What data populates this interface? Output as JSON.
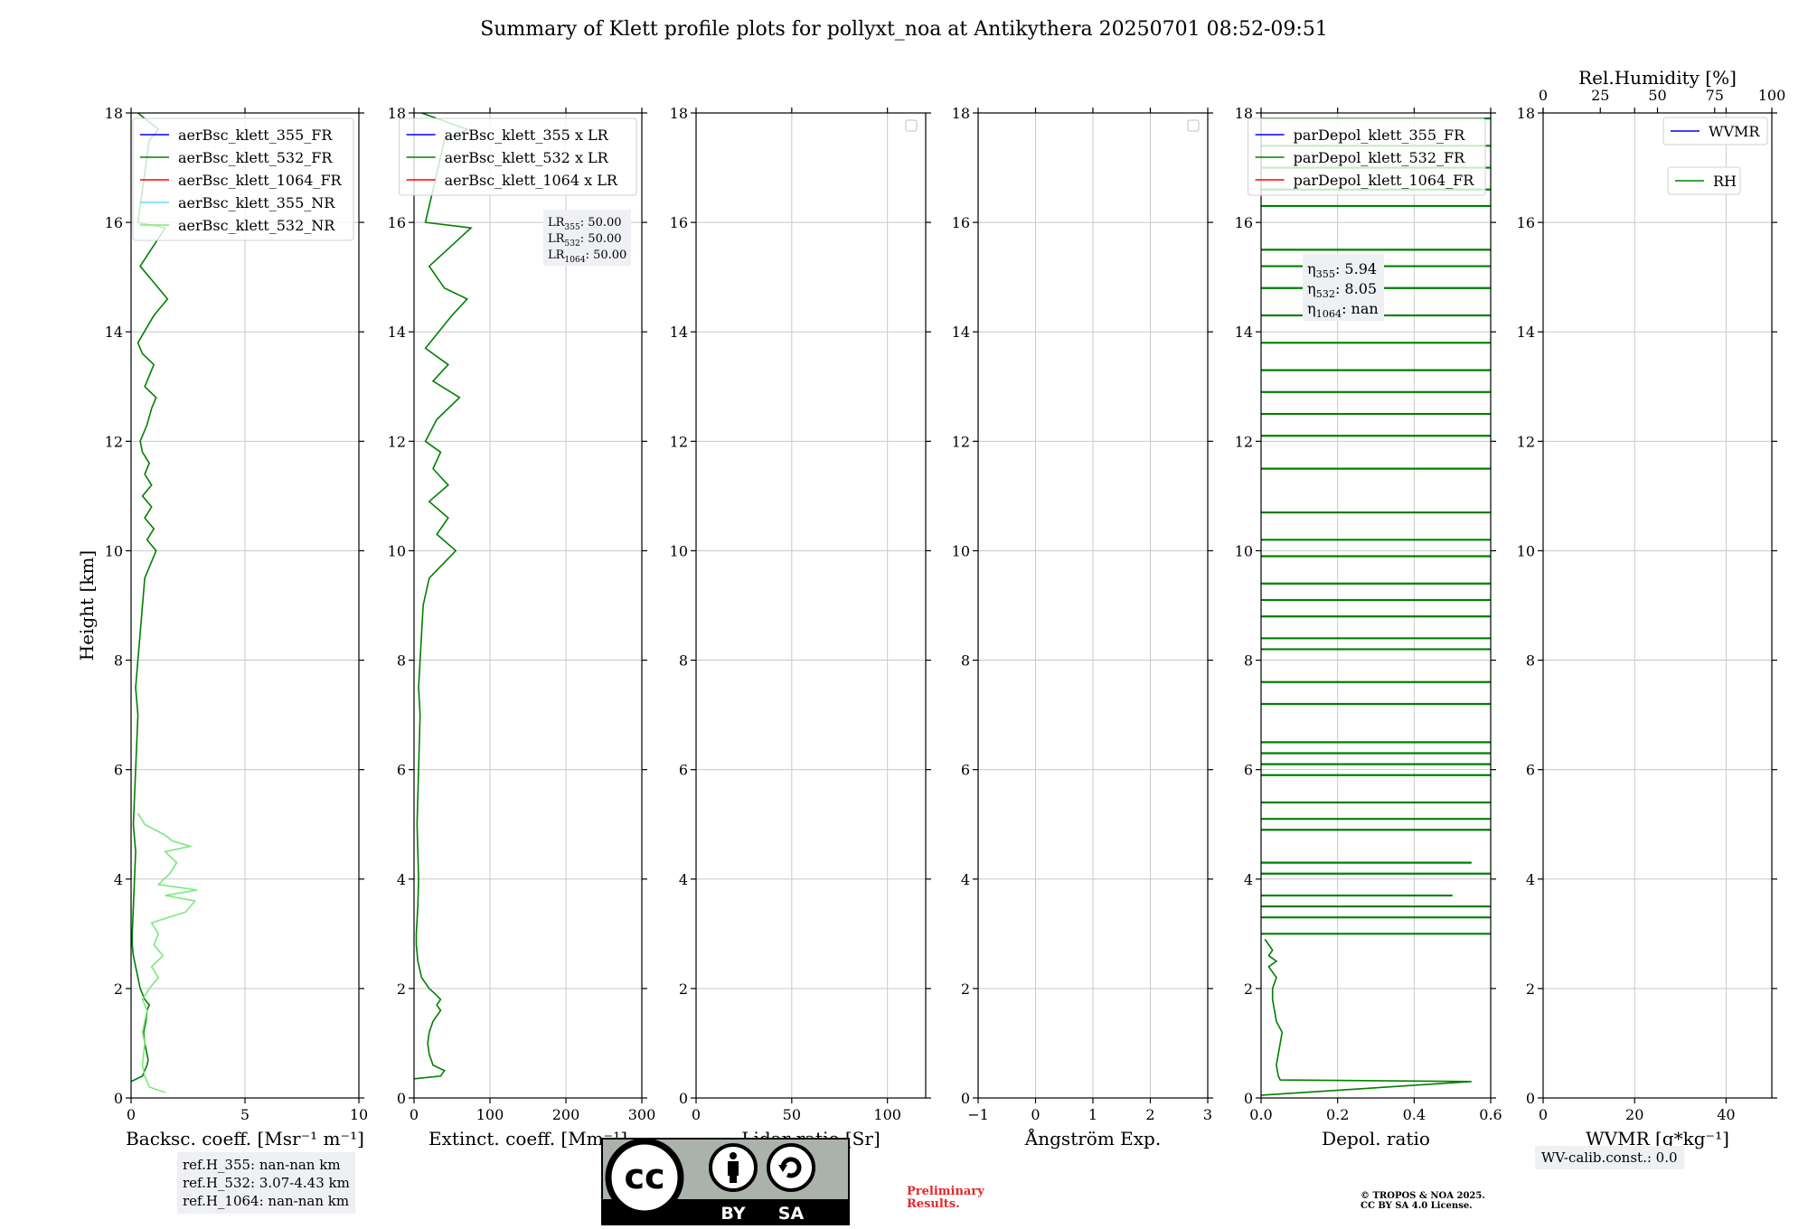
{
  "figure": {
    "title": "Summary of Klett profile plots for pollyxt_noa at Antikythera 20250701 08:52-09:51",
    "ref_heights": [
      "ref.H_355: nan-nan km",
      "ref.H_532: 3.07-4.43 km",
      "ref.H_1064: nan-nan km"
    ],
    "wv_calib": "WV-calib.const.: 0.0",
    "preliminary": [
      "Preliminary",
      "Results."
    ],
    "copyright": [
      "© TROPOS & NOA 2025.",
      "CC BY SA 4.0 License."
    ],
    "license_badge": {
      "cc": "cc",
      "by": "BY",
      "sa": "SA",
      "icon": "creative-commons-by-sa-icon"
    }
  },
  "chart_data": [
    {
      "type": "line",
      "panel": "backscatter",
      "xlabel": "Backsc. coeff. [Msr⁻¹ m⁻¹]",
      "ylabel": "Height [km]",
      "xlim": [
        0,
        10
      ],
      "ylim": [
        0,
        18
      ],
      "xticks": [
        0,
        5,
        10
      ],
      "yticks": [
        0,
        2,
        4,
        6,
        8,
        10,
        12,
        14,
        16,
        18
      ],
      "grid": true,
      "legend_position": "top-right",
      "series": [
        {
          "name": "aerBsc_klett_355_FR",
          "color": "#0000ff",
          "x": [],
          "y": []
        },
        {
          "name": "aerBsc_klett_532_FR",
          "color": "#008000",
          "y": [
            0.3,
            0.4,
            0.5,
            0.6,
            0.7,
            0.8,
            1.0,
            1.2,
            1.4,
            1.6,
            1.7,
            1.8,
            1.9,
            2.0,
            2.1,
            2.2,
            2.4,
            2.6,
            2.8,
            3.0,
            3.5,
            4.0,
            4.5,
            5.0,
            5.5,
            6.0,
            6.5,
            7.0,
            7.5,
            8.0,
            8.5,
            9.0,
            9.5,
            10.0,
            10.2,
            10.4,
            10.6,
            10.8,
            11.0,
            11.2,
            11.4,
            11.6,
            11.8,
            12.0,
            12.3,
            12.6,
            12.8,
            13.0,
            13.2,
            13.4,
            13.6,
            13.8,
            14.3,
            14.6,
            14.8,
            15.0,
            15.2,
            15.9,
            16.0,
            17.5,
            17.7,
            18.0
          ],
          "x": [
            0.0,
            0.5,
            0.6,
            0.7,
            0.75,
            0.7,
            0.6,
            0.55,
            0.65,
            0.7,
            0.8,
            0.6,
            0.5,
            0.4,
            0.35,
            0.3,
            0.2,
            0.1,
            0.05,
            0.05,
            0.1,
            0.15,
            0.2,
            0.1,
            0.15,
            0.2,
            0.25,
            0.3,
            0.2,
            0.3,
            0.4,
            0.5,
            0.6,
            1.1,
            0.7,
            1.0,
            0.6,
            0.9,
            0.5,
            0.9,
            0.6,
            0.8,
            0.5,
            0.4,
            0.7,
            0.9,
            1.1,
            0.6,
            0.8,
            1.0,
            0.5,
            0.3,
            1.0,
            1.6,
            1.2,
            0.8,
            0.4,
            1.5,
            0.3,
            0.8,
            1.2,
            0.3
          ]
        },
        {
          "name": "aerBsc_klett_1064_FR",
          "color": "#ff0000",
          "x": [],
          "y": []
        },
        {
          "name": "aerBsc_klett_355_NR",
          "color": "#6fd8f5",
          "x": [],
          "y": []
        },
        {
          "name": "aerBsc_klett_532_NR",
          "color": "#7ee87e",
          "y": [
            0.1,
            0.2,
            0.4,
            0.6,
            0.8,
            1.0,
            1.2,
            1.4,
            1.6,
            1.8,
            2.0,
            2.2,
            2.4,
            2.6,
            2.8,
            3.0,
            3.2,
            3.4,
            3.6,
            3.7,
            3.8,
            3.9,
            4.1,
            4.3,
            4.5,
            4.6,
            4.7,
            4.8,
            5.0,
            5.2
          ],
          "x": [
            1.5,
            0.8,
            0.6,
            0.5,
            0.55,
            0.6,
            0.5,
            0.6,
            0.7,
            0.5,
            0.8,
            1.2,
            0.9,
            1.4,
            1.0,
            1.2,
            0.9,
            2.4,
            2.8,
            1.5,
            2.9,
            1.2,
            1.7,
            2.0,
            1.5,
            2.6,
            1.8,
            1.5,
            0.6,
            0.3
          ]
        }
      ],
      "annotation": []
    },
    {
      "type": "line",
      "panel": "extinction",
      "xlabel": "Extinct. coeff. [Mm⁻¹]",
      "xlim": [
        0,
        300
      ],
      "ylim": [
        0,
        18
      ],
      "xticks": [
        0,
        100,
        200,
        300
      ],
      "yticks": [
        0,
        2,
        4,
        6,
        8,
        10,
        12,
        14,
        16,
        18
      ],
      "grid": true,
      "legend_position": "top-right",
      "series": [
        {
          "name": "aerBsc_klett_355 x LR",
          "color": "#0000ff",
          "x": [],
          "y": []
        },
        {
          "name": "aerBsc_klett_532 x LR",
          "color": "#008000",
          "y": [
            0.35,
            0.4,
            0.5,
            0.6,
            0.8,
            1.0,
            1.2,
            1.4,
            1.6,
            1.7,
            1.8,
            1.9,
            2.0,
            2.2,
            2.5,
            2.8,
            3.0,
            3.5,
            4.0,
            4.5,
            5.0,
            5.5,
            6.0,
            6.5,
            7.0,
            7.5,
            8.0,
            8.5,
            9.0,
            9.5,
            10.0,
            10.3,
            10.6,
            10.9,
            11.2,
            11.5,
            11.8,
            12.0,
            12.4,
            12.8,
            13.1,
            13.4,
            13.7,
            14.3,
            14.6,
            14.8,
            15.2,
            15.9,
            16.0,
            17.5,
            17.7,
            18.0
          ],
          "x": [
            0,
            35,
            40,
            25,
            20,
            18,
            20,
            25,
            35,
            30,
            35,
            28,
            20,
            10,
            5,
            3,
            3,
            5,
            6,
            5,
            4,
            5,
            6,
            7,
            8,
            6,
            8,
            10,
            12,
            20,
            55,
            30,
            45,
            20,
            45,
            25,
            35,
            15,
            30,
            60,
            25,
            45,
            15,
            50,
            70,
            40,
            20,
            75,
            15,
            40,
            70,
            10
          ]
        },
        {
          "name": "aerBsc_klett_1064 x LR",
          "color": "#ff0000",
          "x": [],
          "y": []
        }
      ],
      "annotation": [
        {
          "name": "LR",
          "sub": "355",
          "value": ": 50.00"
        },
        {
          "name": "LR",
          "sub": "532",
          "value": ": 50.00"
        },
        {
          "name": "LR",
          "sub": "1064",
          "value": ": 50.00"
        }
      ]
    },
    {
      "type": "line",
      "panel": "lidar-ratio",
      "xlabel": "Lidar ratio [Sr]",
      "xlim": [
        0,
        120
      ],
      "ylim": [
        0,
        18
      ],
      "xticks": [
        0,
        50,
        100
      ],
      "yticks": [
        0,
        2,
        4,
        6,
        8,
        10,
        12,
        14,
        16,
        18
      ],
      "grid": true,
      "legend_position": "top-right",
      "series": [],
      "annotation": []
    },
    {
      "type": "line",
      "panel": "angstroem",
      "xlabel": "Ångström Exp.",
      "xlim": [
        -1,
        3
      ],
      "ylim": [
        0,
        18
      ],
      "xticks": [
        -1,
        0,
        1,
        2,
        3
      ],
      "yticks": [
        0,
        2,
        4,
        6,
        8,
        10,
        12,
        14,
        16,
        18
      ],
      "grid": true,
      "legend_position": "top-right",
      "series": [],
      "annotation": []
    },
    {
      "type": "line",
      "panel": "depol",
      "xlabel": "Depol. ratio",
      "xlim": [
        0.0,
        0.6
      ],
      "ylim": [
        0,
        18
      ],
      "xticks": [
        0.0,
        0.2,
        0.4,
        0.6
      ],
      "xtick_labels": [
        "0.0",
        "0.2",
        "0.4",
        "0.6"
      ],
      "yticks": [
        0,
        2,
        4,
        6,
        8,
        10,
        12,
        14,
        16,
        18
      ],
      "grid": true,
      "legend_position": "top-right",
      "series": [
        {
          "name": "parDepol_klett_355_FR",
          "color": "#0000ff",
          "x": [],
          "y": []
        },
        {
          "name": "parDepol_klett_532_FR",
          "color": "#008000",
          "profile_y": [
            0.05,
            0.3,
            0.33,
            0.4,
            0.6,
            0.8,
            1.0,
            1.2,
            1.4,
            1.6,
            1.8,
            2.0,
            2.2,
            2.4,
            2.5,
            2.6,
            2.7,
            2.8,
            2.9
          ],
          "profile_x": [
            0.0,
            0.55,
            0.05,
            0.045,
            0.04,
            0.045,
            0.05,
            0.055,
            0.04,
            0.035,
            0.03,
            0.03,
            0.04,
            0.02,
            0.04,
            0.02,
            0.03,
            0.02,
            0.01
          ],
          "spike_heights": [
            3.0,
            3.3,
            3.5,
            3.7,
            4.1,
            4.3,
            4.9,
            5.1,
            5.4,
            5.9,
            6.1,
            6.3,
            6.5,
            7.2,
            7.6,
            8.2,
            8.4,
            8.8,
            9.1,
            9.4,
            9.9,
            10.2,
            10.7,
            11.5,
            12.1,
            12.5,
            12.9,
            13.3,
            13.8,
            14.3,
            14.8,
            15.2,
            15.5,
            16.3,
            16.6,
            17.0,
            17.4,
            17.9
          ],
          "spike_x": [
            0.6,
            0.6,
            0.6,
            0.5,
            0.6,
            0.55,
            0.6,
            0.6,
            0.6,
            0.6,
            0.6,
            0.6,
            0.6,
            0.6,
            0.6,
            0.6,
            0.6,
            0.6,
            0.6,
            0.6,
            0.6,
            0.6,
            0.6,
            0.6,
            0.6,
            0.6,
            0.6,
            0.6,
            0.6,
            0.6,
            0.6,
            0.6,
            0.6,
            0.6,
            0.6,
            0.6,
            0.6,
            0.6
          ]
        },
        {
          "name": "parDepol_klett_1064_FR",
          "color": "#ff0000",
          "x": [],
          "y": []
        }
      ],
      "annotation": [
        {
          "name": "η",
          "sub": "355",
          "value": ": 5.94"
        },
        {
          "name": "η",
          "sub": "532",
          "value": ": 8.05"
        },
        {
          "name": "η",
          "sub": "1064",
          "value": ": nan"
        }
      ]
    },
    {
      "type": "line",
      "panel": "wvmr",
      "xlabel": "WVMR [g*kg⁻¹]",
      "top_label": "Rel.Humidity [%]",
      "xlim": [
        0,
        50
      ],
      "ylim": [
        0,
        18
      ],
      "xticks": [
        0,
        20,
        40
      ],
      "top_xticks": [
        0,
        25,
        50,
        75,
        100
      ],
      "yticks": [
        0,
        2,
        4,
        6,
        8,
        10,
        12,
        14,
        16,
        18
      ],
      "grid": true,
      "legend_position": "top-right",
      "series": [
        {
          "name": "WVMR",
          "color": "#0000ff",
          "x": [],
          "y": []
        },
        {
          "name": "RH",
          "color": "#008000",
          "x": [],
          "y": []
        }
      ],
      "annotation": []
    }
  ]
}
